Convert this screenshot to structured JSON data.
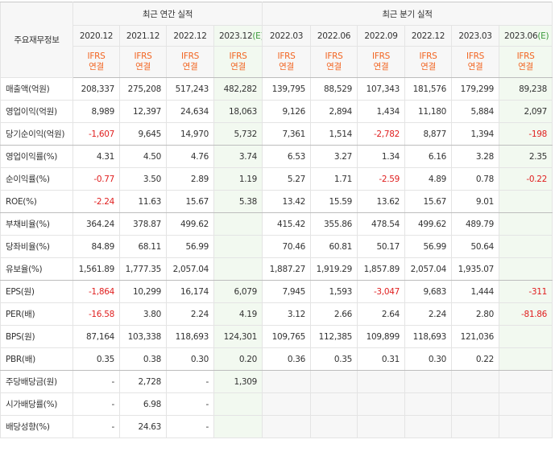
{
  "table": {
    "corner": "주요재무정보",
    "groups": [
      {
        "title": "최근 연간 실적",
        "span": 4
      },
      {
        "title": "최근 분기 실적",
        "span": 6
      }
    ],
    "columns": [
      {
        "date": "2020.12",
        "standard": "IFRS",
        "consolidation": "연결"
      },
      {
        "date": "2021.12",
        "standard": "IFRS",
        "consolidation": "연결"
      },
      {
        "date": "2022.12",
        "standard": "IFRS",
        "consolidation": "연결"
      },
      {
        "date": "2023.12",
        "estimate": "(E)",
        "standard": "IFRS",
        "consolidation": "연결"
      },
      {
        "date": "2022.03",
        "standard": "IFRS",
        "consolidation": "연결"
      },
      {
        "date": "2022.06",
        "standard": "IFRS",
        "consolidation": "연결"
      },
      {
        "date": "2022.09",
        "standard": "IFRS",
        "consolidation": "연결"
      },
      {
        "date": "2022.12",
        "standard": "IFRS",
        "consolidation": "연결"
      },
      {
        "date": "2023.03",
        "standard": "IFRS",
        "consolidation": "연결"
      },
      {
        "date": "2023.06",
        "estimate": "(E)",
        "standard": "IFRS",
        "consolidation": "연결"
      }
    ],
    "rows": [
      {
        "label": "매출액(억원)",
        "values": [
          "208,337",
          "275,208",
          "517,243",
          "482,282",
          "139,795",
          "88,529",
          "107,343",
          "181,576",
          "179,299",
          "89,238"
        ]
      },
      {
        "label": "영업이익(억원)",
        "values": [
          "8,989",
          "12,397",
          "24,634",
          "18,063",
          "9,126",
          "2,894",
          "1,434",
          "11,180",
          "5,884",
          "2,097"
        ]
      },
      {
        "label": "당기순이익(억원)",
        "values": [
          "-1,607",
          "9,645",
          "14,970",
          "5,732",
          "7,361",
          "1,514",
          "-2,782",
          "8,877",
          "1,394",
          "-198"
        ]
      },
      {
        "label": "영업이익률(%)",
        "values": [
          "4.31",
          "4.50",
          "4.76",
          "3.74",
          "6.53",
          "3.27",
          "1.34",
          "6.16",
          "3.28",
          "2.35"
        ]
      },
      {
        "label": "순이익률(%)",
        "values": [
          "-0.77",
          "3.50",
          "2.89",
          "1.19",
          "5.27",
          "1.71",
          "-2.59",
          "4.89",
          "0.78",
          "-0.22"
        ]
      },
      {
        "label": "ROE(%)",
        "values": [
          "-2.24",
          "11.63",
          "15.67",
          "5.38",
          "13.42",
          "15.59",
          "13.62",
          "15.67",
          "9.01",
          null
        ]
      },
      {
        "label": "부채비율(%)",
        "values": [
          "364.24",
          "378.87",
          "499.62",
          null,
          "415.42",
          "355.86",
          "478.54",
          "499.62",
          "489.79",
          null
        ]
      },
      {
        "label": "당좌비율(%)",
        "values": [
          "84.89",
          "68.11",
          "56.99",
          null,
          "70.46",
          "60.81",
          "50.17",
          "56.99",
          "50.64",
          null
        ]
      },
      {
        "label": "유보율(%)",
        "values": [
          "1,561.89",
          "1,777.35",
          "2,057.04",
          null,
          "1,887.27",
          "1,919.29",
          "1,857.89",
          "2,057.04",
          "1,935.07",
          null
        ]
      },
      {
        "label": "EPS(원)",
        "values": [
          "-1,864",
          "10,299",
          "16,174",
          "6,079",
          "7,945",
          "1,593",
          "-3,047",
          "9,683",
          "1,444",
          "-311"
        ]
      },
      {
        "label": "PER(배)",
        "values": [
          "-16.58",
          "3.80",
          "2.24",
          "4.19",
          "3.12",
          "2.66",
          "2.64",
          "2.24",
          "2.80",
          "-81.86"
        ]
      },
      {
        "label": "BPS(원)",
        "values": [
          "87,164",
          "103,338",
          "118,693",
          "124,301",
          "109,765",
          "112,385",
          "109,899",
          "118,693",
          "121,036",
          null
        ]
      },
      {
        "label": "PBR(배)",
        "values": [
          "0.35",
          "0.38",
          "0.30",
          "0.20",
          "0.36",
          "0.35",
          "0.31",
          "0.30",
          "0.22",
          null
        ]
      },
      {
        "label": "주당배당금(원)",
        "values": [
          "-",
          "2,728",
          "-",
          "1,309",
          null,
          null,
          null,
          null,
          null,
          null
        ]
      },
      {
        "label": "시가배당률(%)",
        "values": [
          "-",
          "6.98",
          "-",
          null,
          null,
          null,
          null,
          null,
          null,
          null
        ]
      },
      {
        "label": "배당성향(%)",
        "values": [
          "-",
          "24.63",
          "-",
          null,
          null,
          null,
          null,
          null,
          null,
          null
        ]
      }
    ]
  }
}
